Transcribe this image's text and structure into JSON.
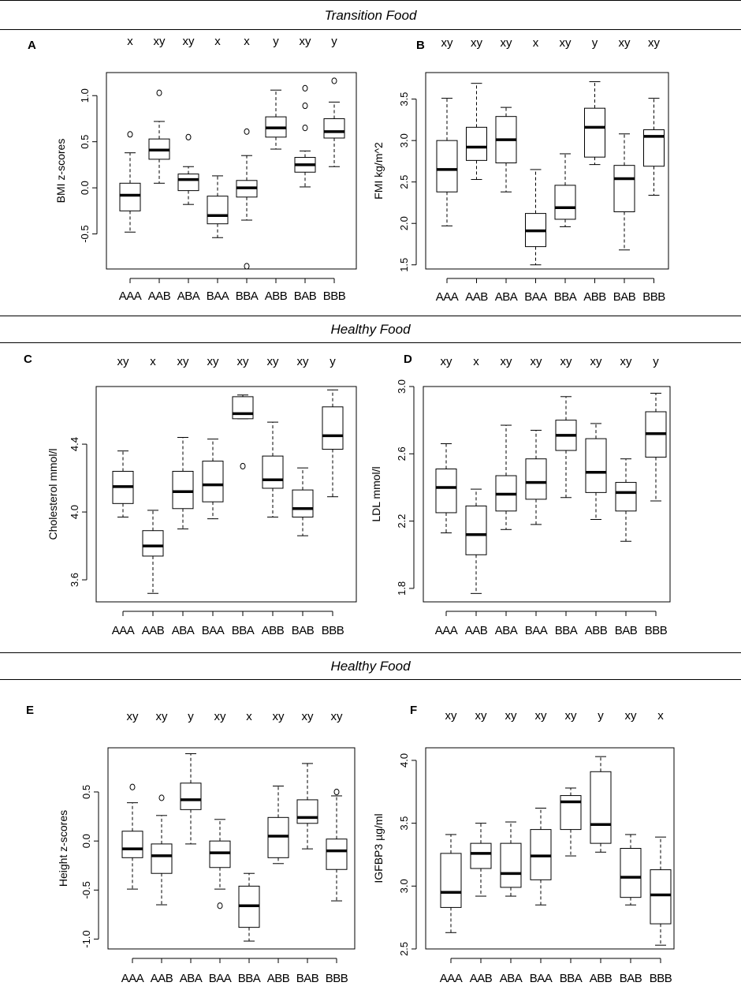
{
  "sections": [
    {
      "title": "Transition Food"
    },
    {
      "title": "Healthy Food"
    },
    {
      "title": "Healthy Food"
    }
  ],
  "chart_data": [
    {
      "type": "boxplot",
      "panel": "A",
      "title": "",
      "xlabel": "",
      "ylabel": "BMI z-scores",
      "categories": [
        "AAA",
        "AAB",
        "ABA",
        "BAA",
        "BBA",
        "ABB",
        "BAB",
        "BBB"
      ],
      "group_letters": [
        "x",
        "xy",
        "xy",
        "x",
        "x",
        "y",
        "xy",
        "y"
      ],
      "ylim": [
        -0.88,
        1.25
      ],
      "yticks": [
        -0.5,
        0.0,
        0.5,
        1.0
      ],
      "ytick_labels": [
        "-0.5",
        "0.0",
        "0.5",
        "1.0"
      ],
      "boxes": [
        {
          "min": -0.48,
          "q1": -0.25,
          "median": -0.08,
          "q3": 0.05,
          "max": 0.38,
          "outliers": [
            0.58
          ]
        },
        {
          "min": 0.05,
          "q1": 0.31,
          "median": 0.41,
          "q3": 0.53,
          "max": 0.72,
          "outliers": [
            1.03
          ]
        },
        {
          "min": -0.18,
          "q1": -0.03,
          "median": 0.09,
          "q3": 0.15,
          "max": 0.23,
          "outliers": [
            0.55
          ]
        },
        {
          "min": -0.54,
          "q1": -0.39,
          "median": -0.3,
          "q3": -0.09,
          "max": 0.13,
          "outliers": []
        },
        {
          "min": -0.35,
          "q1": -0.1,
          "median": 0.0,
          "q3": 0.08,
          "max": 0.35,
          "outliers": [
            0.61,
            -0.85
          ]
        },
        {
          "min": 0.42,
          "q1": 0.55,
          "median": 0.65,
          "q3": 0.77,
          "max": 1.06,
          "outliers": []
        },
        {
          "min": 0.01,
          "q1": 0.17,
          "median": 0.25,
          "q3": 0.33,
          "max": 0.4,
          "outliers": [
            0.65,
            0.89,
            1.08
          ]
        },
        {
          "min": 0.23,
          "q1": 0.54,
          "median": 0.61,
          "q3": 0.75,
          "max": 0.93,
          "outliers": [
            1.16
          ]
        }
      ]
    },
    {
      "type": "boxplot",
      "panel": "B",
      "title": "",
      "xlabel": "",
      "ylabel": "FMI kg/m^2",
      "categories": [
        "AAA",
        "AAB",
        "ABA",
        "BAA",
        "BBA",
        "ABB",
        "BAB",
        "BBB"
      ],
      "group_letters": [
        "xy",
        "xy",
        "xy",
        "x",
        "xy",
        "y",
        "xy",
        "xy"
      ],
      "ylim": [
        1.45,
        3.82
      ],
      "yticks": [
        1.5,
        2.0,
        2.5,
        3.0,
        3.5
      ],
      "ytick_labels": [
        "1.5",
        "2.0",
        "2.5",
        "3.0",
        "3.5"
      ],
      "boxes": [
        {
          "min": 1.97,
          "q1": 2.38,
          "median": 2.65,
          "q3": 3.0,
          "max": 3.51,
          "outliers": []
        },
        {
          "min": 2.53,
          "q1": 2.76,
          "median": 2.92,
          "q3": 3.16,
          "max": 3.69,
          "outliers": []
        },
        {
          "min": 2.38,
          "q1": 2.73,
          "median": 3.01,
          "q3": 3.29,
          "max": 3.4,
          "outliers": []
        },
        {
          "min": 1.5,
          "q1": 1.72,
          "median": 1.91,
          "q3": 2.12,
          "max": 2.65,
          "outliers": []
        },
        {
          "min": 1.96,
          "q1": 2.05,
          "median": 2.19,
          "q3": 2.46,
          "max": 2.84,
          "outliers": []
        },
        {
          "min": 2.71,
          "q1": 2.8,
          "median": 3.16,
          "q3": 3.39,
          "max": 3.71,
          "outliers": []
        },
        {
          "min": 1.68,
          "q1": 2.14,
          "median": 2.54,
          "q3": 2.7,
          "max": 3.08,
          "outliers": []
        },
        {
          "min": 2.34,
          "q1": 2.69,
          "median": 3.05,
          "q3": 3.13,
          "max": 3.51,
          "outliers": []
        }
      ]
    },
    {
      "type": "boxplot",
      "panel": "C",
      "title": "",
      "xlabel": "",
      "ylabel": "Cholesterol mmol/l",
      "categories": [
        "AAA",
        "AAB",
        "ABA",
        "BAA",
        "BBA",
        "ABB",
        "BAB",
        "BBB"
      ],
      "group_letters": [
        "xy",
        "x",
        "xy",
        "xy",
        "xy",
        "xy",
        "xy",
        "y"
      ],
      "ylim": [
        3.47,
        4.74
      ],
      "yticks": [
        3.6,
        4.0,
        4.4
      ],
      "ytick_labels": [
        "3.6",
        "4.0",
        "4.4"
      ],
      "boxes": [
        {
          "min": 3.97,
          "q1": 4.05,
          "median": 4.15,
          "q3": 4.24,
          "max": 4.36,
          "outliers": []
        },
        {
          "min": 3.52,
          "q1": 3.74,
          "median": 3.8,
          "q3": 3.89,
          "max": 4.01,
          "outliers": []
        },
        {
          "min": 3.9,
          "q1": 4.02,
          "median": 4.12,
          "q3": 4.24,
          "max": 4.44,
          "outliers": []
        },
        {
          "min": 3.96,
          "q1": 4.06,
          "median": 4.16,
          "q3": 4.3,
          "max": 4.43,
          "outliers": []
        },
        {
          "min": 4.55,
          "q1": 4.55,
          "median": 4.58,
          "q3": 4.68,
          "max": 4.69,
          "outliers": [
            4.27
          ]
        },
        {
          "min": 3.97,
          "q1": 4.14,
          "median": 4.19,
          "q3": 4.33,
          "max": 4.53,
          "outliers": []
        },
        {
          "min": 3.86,
          "q1": 3.97,
          "median": 4.02,
          "q3": 4.13,
          "max": 4.26,
          "outliers": []
        },
        {
          "min": 4.09,
          "q1": 4.37,
          "median": 4.45,
          "q3": 4.62,
          "max": 4.72,
          "outliers": []
        }
      ]
    },
    {
      "type": "boxplot",
      "panel": "D",
      "title": "",
      "xlabel": "",
      "ylabel": "LDL mmol/l",
      "categories": [
        "AAA",
        "AAB",
        "ABA",
        "BAA",
        "BBA",
        "ABB",
        "BAB",
        "BBB"
      ],
      "group_letters": [
        "xy",
        "x",
        "xy",
        "xy",
        "xy",
        "xy",
        "xy",
        "y"
      ],
      "ylim": [
        1.72,
        3.0
      ],
      "yticks": [
        1.8,
        2.2,
        2.6,
        3.0
      ],
      "ytick_labels": [
        "1.8",
        "2.2",
        "2.6",
        "3.0"
      ],
      "boxes": [
        {
          "min": 2.13,
          "q1": 2.25,
          "median": 2.4,
          "q3": 2.51,
          "max": 2.66,
          "outliers": []
        },
        {
          "min": 1.77,
          "q1": 2.0,
          "median": 2.12,
          "q3": 2.29,
          "max": 2.39,
          "outliers": []
        },
        {
          "min": 2.15,
          "q1": 2.26,
          "median": 2.36,
          "q3": 2.47,
          "max": 2.77,
          "outliers": []
        },
        {
          "min": 2.18,
          "q1": 2.33,
          "median": 2.43,
          "q3": 2.57,
          "max": 2.74,
          "outliers": []
        },
        {
          "min": 2.34,
          "q1": 2.62,
          "median": 2.71,
          "q3": 2.8,
          "max": 2.94,
          "outliers": []
        },
        {
          "min": 2.21,
          "q1": 2.37,
          "median": 2.49,
          "q3": 2.69,
          "max": 2.78,
          "outliers": []
        },
        {
          "min": 2.08,
          "q1": 2.26,
          "median": 2.37,
          "q3": 2.43,
          "max": 2.57,
          "outliers": []
        },
        {
          "min": 2.32,
          "q1": 2.58,
          "median": 2.72,
          "q3": 2.85,
          "max": 2.96,
          "outliers": []
        }
      ]
    },
    {
      "type": "boxplot",
      "panel": "E",
      "title": "",
      "xlabel": "",
      "ylabel": "Height z-scores",
      "categories": [
        "AAA",
        "AAB",
        "ABA",
        "BAA",
        "BBA",
        "ABB",
        "BAB",
        "BBB"
      ],
      "group_letters": [
        "xy",
        "xy",
        "y",
        "xy",
        "x",
        "xy",
        "xy",
        "xy"
      ],
      "ylim": [
        -1.1,
        0.95
      ],
      "yticks": [
        -1.0,
        -0.5,
        0.0,
        0.5
      ],
      "ytick_labels": [
        "-1.0",
        "-0.5",
        "0.0",
        "0.5"
      ],
      "boxes": [
        {
          "min": -0.49,
          "q1": -0.17,
          "median": -0.08,
          "q3": 0.1,
          "max": 0.39,
          "outliers": [
            0.55
          ]
        },
        {
          "min": -0.65,
          "q1": -0.33,
          "median": -0.15,
          "q3": -0.03,
          "max": 0.26,
          "outliers": [
            0.44
          ]
        },
        {
          "min": -0.03,
          "q1": 0.32,
          "median": 0.42,
          "q3": 0.59,
          "max": 0.89,
          "outliers": []
        },
        {
          "min": -0.49,
          "q1": -0.27,
          "median": -0.12,
          "q3": 0.0,
          "max": 0.22,
          "outliers": [
            -0.66
          ]
        },
        {
          "min": -1.02,
          "q1": -0.88,
          "median": -0.66,
          "q3": -0.46,
          "max": -0.33,
          "outliers": []
        },
        {
          "min": -0.23,
          "q1": -0.17,
          "median": 0.05,
          "q3": 0.24,
          "max": 0.56,
          "outliers": []
        },
        {
          "min": -0.08,
          "q1": 0.18,
          "median": 0.24,
          "q3": 0.42,
          "max": 0.79,
          "outliers": []
        },
        {
          "min": -0.61,
          "q1": -0.29,
          "median": -0.1,
          "q3": 0.02,
          "max": 0.46,
          "outliers": [
            0.5
          ]
        }
      ]
    },
    {
      "type": "boxplot",
      "panel": "F",
      "title": "",
      "xlabel": "",
      "ylabel": "IGFBP3 µg/ml",
      "categories": [
        "AAA",
        "AAB",
        "ABA",
        "BAA",
        "BBA",
        "ABB",
        "BAB",
        "BBB"
      ],
      "group_letters": [
        "xy",
        "xy",
        "xy",
        "xy",
        "xy",
        "y",
        "xy",
        "x"
      ],
      "ylim": [
        2.5,
        4.1
      ],
      "yticks": [
        2.5,
        3.0,
        3.5,
        4.0
      ],
      "ytick_labels": [
        "2.5",
        "3.0",
        "3.5",
        "4.0"
      ],
      "boxes": [
        {
          "min": 2.63,
          "q1": 2.83,
          "median": 2.95,
          "q3": 3.26,
          "max": 3.41,
          "outliers": []
        },
        {
          "min": 2.92,
          "q1": 3.14,
          "median": 3.26,
          "q3": 3.34,
          "max": 3.5,
          "outliers": []
        },
        {
          "min": 2.92,
          "q1": 2.99,
          "median": 3.1,
          "q3": 3.34,
          "max": 3.51,
          "outliers": []
        },
        {
          "min": 2.85,
          "q1": 3.05,
          "median": 3.24,
          "q3": 3.45,
          "max": 3.62,
          "outliers": []
        },
        {
          "min": 3.24,
          "q1": 3.45,
          "median": 3.67,
          "q3": 3.72,
          "max": 3.78,
          "outliers": []
        },
        {
          "min": 3.27,
          "q1": 3.34,
          "median": 3.49,
          "q3": 3.91,
          "max": 4.03,
          "outliers": []
        },
        {
          "min": 2.85,
          "q1": 2.91,
          "median": 3.07,
          "q3": 3.3,
          "max": 3.41,
          "outliers": []
        },
        {
          "min": 2.53,
          "q1": 2.7,
          "median": 2.93,
          "q3": 3.13,
          "max": 3.39,
          "outliers": []
        }
      ]
    }
  ]
}
